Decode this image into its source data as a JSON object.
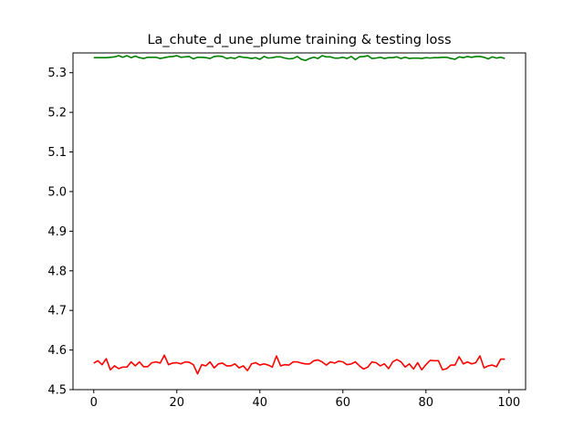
{
  "chart_data": {
    "type": "line",
    "title": "La_chute_d_une_plume training & testing loss",
    "xlabel": "",
    "ylabel": "",
    "xlim": [
      -5,
      104
    ],
    "ylim": [
      4.5,
      5.35
    ],
    "xticks": [
      0,
      20,
      40,
      60,
      80,
      100
    ],
    "yticks": [
      4.5,
      4.6,
      4.7,
      4.8,
      4.9,
      5.0,
      5.1,
      5.2,
      5.3
    ],
    "xtick_labels": [
      "0",
      "20",
      "40",
      "60",
      "80",
      "100"
    ],
    "ytick_labels": [
      "4.5",
      "4.6",
      "4.7",
      "4.8",
      "4.9",
      "5.0",
      "5.1",
      "5.2",
      "5.3"
    ],
    "grid": false,
    "legend": "none",
    "series": [
      {
        "color": "#008000",
        "values": [
          5.338,
          5.338,
          5.338,
          5.338,
          5.339,
          5.34,
          5.343,
          5.339,
          5.343,
          5.338,
          5.342,
          5.338,
          5.336,
          5.339,
          5.339,
          5.339,
          5.336,
          5.338,
          5.34,
          5.341,
          5.343,
          5.339,
          5.34,
          5.341,
          5.335,
          5.339,
          5.339,
          5.338,
          5.336,
          5.341,
          5.342,
          5.341,
          5.336,
          5.338,
          5.336,
          5.341,
          5.339,
          5.338,
          5.336,
          5.338,
          5.334,
          5.341,
          5.337,
          5.338,
          5.34,
          5.34,
          5.337,
          5.335,
          5.336,
          5.341,
          5.334,
          5.331,
          5.336,
          5.339,
          5.336,
          5.343,
          5.34,
          5.34,
          5.337,
          5.337,
          5.339,
          5.336,
          5.341,
          5.333,
          5.34,
          5.341,
          5.343,
          5.336,
          5.337,
          5.339,
          5.336,
          5.338,
          5.338,
          5.34,
          5.336,
          5.339,
          5.336,
          5.337,
          5.337,
          5.336,
          5.338,
          5.337,
          5.338,
          5.338,
          5.339,
          5.339,
          5.336,
          5.334,
          5.34,
          5.338,
          5.341,
          5.339,
          5.341,
          5.341,
          5.339,
          5.335,
          5.34,
          5.337,
          5.339,
          5.336
        ]
      },
      {
        "color": "#ff0000",
        "values": [
          4.567,
          4.573,
          4.563,
          4.578,
          4.55,
          4.56,
          4.553,
          4.557,
          4.557,
          4.57,
          4.56,
          4.57,
          4.558,
          4.558,
          4.568,
          4.57,
          4.567,
          4.587,
          4.563,
          4.567,
          4.568,
          4.565,
          4.57,
          4.569,
          4.563,
          4.54,
          4.563,
          4.56,
          4.57,
          4.555,
          4.565,
          4.567,
          4.56,
          4.56,
          4.565,
          4.555,
          4.56,
          4.548,
          4.565,
          4.568,
          4.562,
          4.565,
          4.562,
          4.557,
          4.585,
          4.56,
          4.563,
          4.562,
          4.57,
          4.57,
          4.567,
          4.565,
          4.565,
          4.573,
          4.575,
          4.57,
          4.562,
          4.57,
          4.567,
          4.572,
          4.57,
          4.563,
          4.565,
          4.57,
          4.56,
          4.552,
          4.557,
          4.57,
          4.568,
          4.56,
          4.565,
          4.553,
          4.57,
          4.576,
          4.57,
          4.557,
          4.565,
          4.552,
          4.568,
          4.55,
          4.563,
          4.574,
          4.573,
          4.573,
          4.55,
          4.553,
          4.562,
          4.562,
          4.583,
          4.565,
          4.57,
          4.565,
          4.568,
          4.585,
          4.555,
          4.56,
          4.562,
          4.558,
          4.577,
          4.577
        ]
      }
    ]
  }
}
